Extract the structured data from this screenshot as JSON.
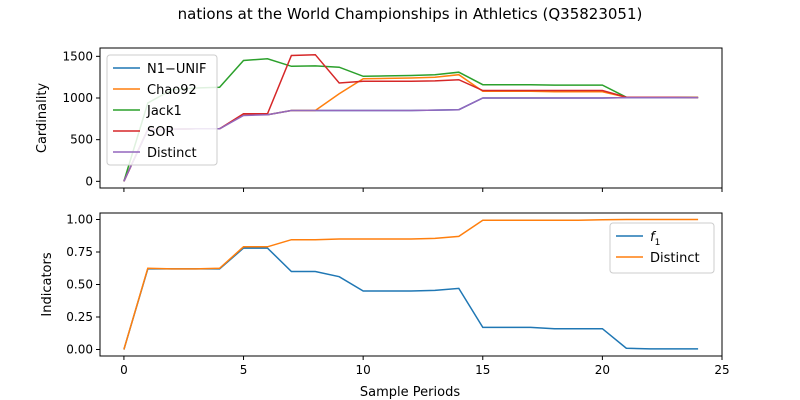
{
  "figure": {
    "title": "nations at the World Championships in Athletics (Q35823051)",
    "xlabel": "Sample Periods"
  },
  "chart_data": [
    {
      "type": "line",
      "ylabel": "Cardinality",
      "xlim": [
        -1,
        25
      ],
      "ylim": [
        -80,
        1600
      ],
      "xticks": [
        0,
        5,
        10,
        15,
        20,
        25
      ],
      "yticks": [
        0,
        500,
        1000,
        1500
      ],
      "show_xticklabels": false,
      "legend": "top-left",
      "x": [
        0,
        1,
        2,
        3,
        4,
        5,
        6,
        7,
        8,
        9,
        10,
        11,
        12,
        13,
        14,
        15,
        16,
        17,
        18,
        19,
        20,
        21,
        22,
        23,
        24
      ],
      "series": [
        {
          "name": "N1−UNIF",
          "color": "#1f77b4",
          "values": [
            0,
            620,
            625,
            630,
            630,
            800,
            800,
            850,
            850,
            850,
            850,
            850,
            850,
            855,
            860,
            1000,
            1000,
            1000,
            1000,
            1000,
            1000,
            1005,
            1005,
            1005,
            1005
          ]
        },
        {
          "name": "Chao92",
          "color": "#ff7f0e",
          "values": [
            0,
            620,
            625,
            630,
            630,
            800,
            800,
            850,
            850,
            1050,
            1230,
            1235,
            1240,
            1250,
            1280,
            1080,
            1080,
            1080,
            1075,
            1075,
            1075,
            1010,
            1010,
            1010,
            1010
          ]
        },
        {
          "name": "Jack1",
          "color": "#2ca02c",
          "values": [
            0,
            940,
            1100,
            1120,
            1130,
            1450,
            1470,
            1380,
            1385,
            1370,
            1260,
            1265,
            1270,
            1280,
            1310,
            1160,
            1160,
            1160,
            1155,
            1155,
            1155,
            1010,
            1010,
            1010,
            1005
          ]
        },
        {
          "name": "SOR",
          "color": "#d62728",
          "values": [
            0,
            625,
            625,
            630,
            630,
            810,
            810,
            1510,
            1520,
            1180,
            1200,
            1200,
            1200,
            1205,
            1220,
            1090,
            1090,
            1090,
            1090,
            1090,
            1090,
            1010,
            1010,
            1010,
            1005
          ]
        },
        {
          "name": "Distinct",
          "color": "#9467bd",
          "values": [
            0,
            620,
            625,
            630,
            630,
            790,
            800,
            850,
            850,
            850,
            850,
            850,
            850,
            855,
            860,
            1000,
            1000,
            1000,
            1000,
            1000,
            1000,
            1005,
            1005,
            1005,
            1005
          ]
        }
      ]
    },
    {
      "type": "line",
      "ylabel": "Indicators",
      "xlim": [
        -1,
        25
      ],
      "ylim": [
        -0.05,
        1.05
      ],
      "xticks": [
        0,
        5,
        10,
        15,
        20,
        25
      ],
      "yticks": [
        0.0,
        0.25,
        0.5,
        0.75,
        1.0
      ],
      "ytick_labels": [
        "0.00",
        "0.25",
        "0.50",
        "0.75",
        "1.00"
      ],
      "show_xticklabels": true,
      "legend": "top-right",
      "x": [
        0,
        1,
        2,
        3,
        4,
        5,
        6,
        7,
        8,
        9,
        10,
        11,
        12,
        13,
        14,
        15,
        16,
        17,
        18,
        19,
        20,
        21,
        22,
        23,
        24
      ],
      "series": [
        {
          "name": "f1",
          "color": "#1f77b4",
          "values": [
            0.0,
            0.62,
            0.62,
            0.62,
            0.62,
            0.78,
            0.78,
            0.6,
            0.6,
            0.56,
            0.45,
            0.45,
            0.45,
            0.455,
            0.47,
            0.17,
            0.17,
            0.17,
            0.16,
            0.16,
            0.16,
            0.01,
            0.005,
            0.005,
            0.005
          ]
        },
        {
          "name": "Distinct",
          "color": "#ff7f0e",
          "values": [
            0.0,
            0.625,
            0.62,
            0.62,
            0.625,
            0.79,
            0.79,
            0.845,
            0.845,
            0.85,
            0.85,
            0.85,
            0.85,
            0.855,
            0.87,
            0.995,
            0.995,
            0.995,
            0.995,
            0.995,
            0.998,
            1.0,
            1.0,
            1.0,
            1.0
          ]
        }
      ]
    }
  ]
}
